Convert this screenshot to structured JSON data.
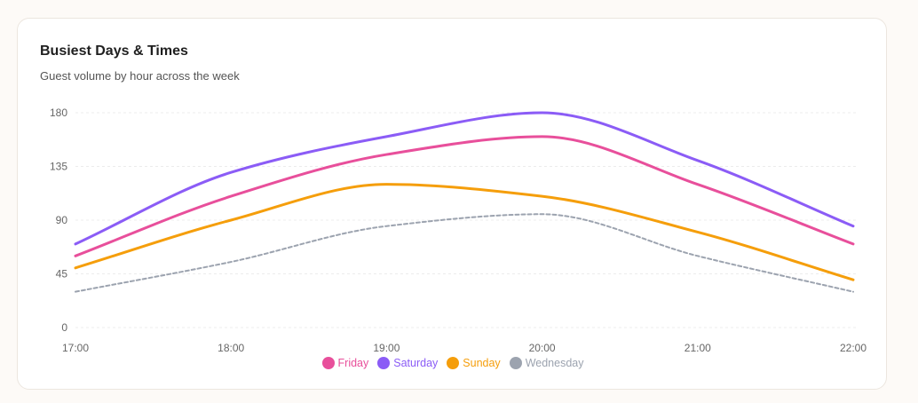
{
  "chart_data": {
    "type": "line",
    "title": "Busiest Days & Times",
    "subtitle": "Guest volume by hour across the week",
    "x": [
      "17:00",
      "18:00",
      "19:00",
      "20:00",
      "21:00",
      "22:00"
    ],
    "ylim": [
      0,
      180
    ],
    "yticks": [
      0,
      45,
      90,
      135,
      180
    ],
    "grid": true,
    "legend_position": "bottom",
    "series": [
      {
        "name": "Friday",
        "color": "#e84f9b",
        "dashed": false,
        "values": [
          60,
          110,
          145,
          160,
          120,
          70
        ]
      },
      {
        "name": "Saturday",
        "color": "#8b5cf6",
        "dashed": false,
        "values": [
          70,
          130,
          160,
          180,
          140,
          85
        ]
      },
      {
        "name": "Sunday",
        "color": "#f59e0b",
        "dashed": false,
        "values": [
          50,
          90,
          120,
          110,
          80,
          40
        ]
      },
      {
        "name": "Wednesday",
        "color": "#9ca3af",
        "dashed": true,
        "values": [
          30,
          55,
          85,
          95,
          60,
          30
        ]
      }
    ]
  }
}
